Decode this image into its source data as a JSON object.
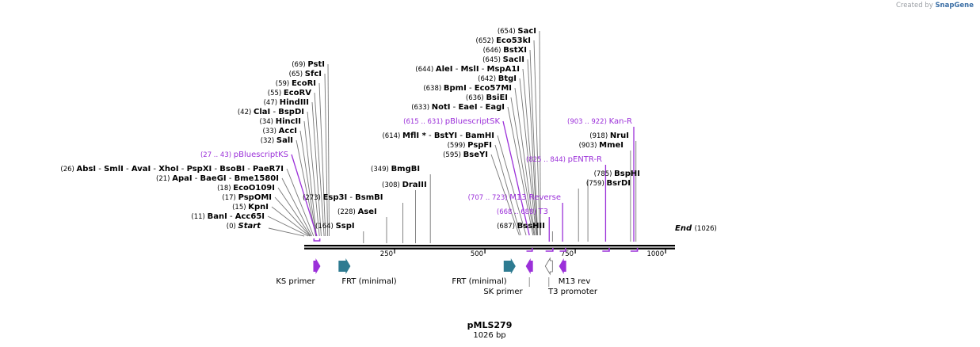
{
  "credit": {
    "prefix": "Created by",
    "brand": "SnapGene"
  },
  "map": {
    "name": "pMLS279",
    "length_label": "1026 bp",
    "total_bp": 1026,
    "ticks": [
      {
        "pos": 250,
        "label": "250"
      },
      {
        "pos": 500,
        "label": "500"
      },
      {
        "pos": 750,
        "label": "750"
      },
      {
        "pos": 1000,
        "label": "1000"
      }
    ],
    "colors": {
      "site_line": "#777777",
      "primer": "#9b30d9",
      "feature_text": "#000000",
      "frt": "#2e7b91"
    },
    "left_sites": [
      {
        "pos": "(69)",
        "names": [
          "PstI"
        ],
        "bp": 69
      },
      {
        "pos": "(65)",
        "names": [
          "SfcI"
        ],
        "bp": 65
      },
      {
        "pos": "(59)",
        "names": [
          "EcoRI"
        ],
        "bp": 59
      },
      {
        "pos": "(55)",
        "names": [
          "EcoRV"
        ],
        "bp": 55
      },
      {
        "pos": "(47)",
        "names": [
          "HindIII"
        ],
        "bp": 47
      },
      {
        "pos": "(42)",
        "names": [
          "ClaI",
          "BspDI"
        ],
        "bp": 42
      },
      {
        "pos": "(34)",
        "names": [
          "HincII"
        ],
        "bp": 34
      },
      {
        "pos": "(33)",
        "names": [
          "AccI"
        ],
        "bp": 33
      },
      {
        "pos": "(32)",
        "names": [
          "SalI"
        ],
        "bp": 32
      },
      {
        "pos": "(27 .. 43)",
        "names": [
          "pBluescriptKS"
        ],
        "bp": 35,
        "primer": true
      },
      {
        "pos": "(26)",
        "names": [
          "AbsI",
          "SmlI",
          "AvaI",
          "XhoI",
          "PspXI",
          "BsoBI",
          "PaeR7I"
        ],
        "bp": 26
      },
      {
        "pos": "(21)",
        "names": [
          "ApaI",
          "BaeGI",
          "Bme1580I"
        ],
        "bp": 21
      },
      {
        "pos": "(18)",
        "names": [
          "EcoO109I"
        ],
        "bp": 18
      },
      {
        "pos": "(17)",
        "names": [
          "PspOMI"
        ],
        "bp": 17
      },
      {
        "pos": "(15)",
        "names": [
          "KpnI"
        ],
        "bp": 15
      },
      {
        "pos": "(11)",
        "names": [
          "BanI",
          "Acc65I"
        ],
        "bp": 11
      },
      {
        "pos": "(0)",
        "names": [
          "Start"
        ],
        "bp": 0,
        "italic": true
      }
    ],
    "mid_sites": [
      {
        "pos": "(349)",
        "names": [
          "BmgBI"
        ],
        "bp": 349
      },
      {
        "pos": "(308)",
        "names": [
          "DraIII"
        ],
        "bp": 308
      },
      {
        "pos": "(273)",
        "names": [
          "Esp3I",
          "BsmBI"
        ],
        "bp": 273
      },
      {
        "pos": "(228)",
        "names": [
          "AseI"
        ],
        "bp": 228
      },
      {
        "pos": "(164)",
        "names": [
          "SspI"
        ],
        "bp": 164
      }
    ],
    "center_sites": [
      {
        "pos": "(654)",
        "names": [
          "SacI"
        ],
        "bp": 654
      },
      {
        "pos": "(652)",
        "names": [
          "Eco53kI"
        ],
        "bp": 652
      },
      {
        "pos": "(646)",
        "names": [
          "BstXI"
        ],
        "bp": 646
      },
      {
        "pos": "(645)",
        "names": [
          "SacII"
        ],
        "bp": 645
      },
      {
        "pos": "(644)",
        "names": [
          "AleI",
          "MslI",
          "MspA1I"
        ],
        "bp": 644
      },
      {
        "pos": "(642)",
        "names": [
          "BtgI"
        ],
        "bp": 642
      },
      {
        "pos": "(638)",
        "names": [
          "BpmI",
          "Eco57MI"
        ],
        "bp": 638
      },
      {
        "pos": "(636)",
        "names": [
          "BsiEI"
        ],
        "bp": 636
      },
      {
        "pos": "(633)",
        "names": [
          "NotI",
          "EaeI",
          "EagI"
        ],
        "bp": 633
      },
      {
        "pos": "(615 .. 631)",
        "names": [
          "pBluescriptSK"
        ],
        "bp": 623,
        "primer": true
      },
      {
        "pos": "(614)",
        "names": [
          "MflI *",
          "BstYI",
          "BamHI"
        ],
        "bp": 614
      },
      {
        "pos": "(599)",
        "names": [
          "PspFI"
        ],
        "bp": 599
      },
      {
        "pos": "(595)",
        "names": [
          "BseYI"
        ],
        "bp": 595
      }
    ],
    "right_sites": [
      {
        "pos": "(825 .. 844)",
        "names": [
          "pENTR-R"
        ],
        "bp": 834,
        "primer": true
      },
      {
        "pos": "(785)",
        "names": [
          "BspHI"
        ],
        "bp": 785
      },
      {
        "pos": "(759)",
        "names": [
          "BsrDI"
        ],
        "bp": 759
      },
      {
        "pos": "(707 .. 723)",
        "names": [
          "M13 Reverse"
        ],
        "bp": 715,
        "primer": true
      },
      {
        "pos": "(668 .. 688)",
        "names": [
          "T3"
        ],
        "bp": 678,
        "primer": true
      },
      {
        "pos": "(687)",
        "names": [
          "BssHII"
        ],
        "bp": 687
      }
    ],
    "far_right_sites": [
      {
        "pos": "(903 .. 922)",
        "names": [
          "Kan-R"
        ],
        "bp": 912,
        "primer": true
      },
      {
        "pos": "(918)",
        "names": [
          "NruI"
        ],
        "bp": 918
      },
      {
        "pos": "(903)",
        "names": [
          "MmeI"
        ],
        "bp": 903
      }
    ],
    "end_site": {
      "pos": "(1026)",
      "name": "End",
      "bp": 1026
    },
    "features": [
      {
        "name": "KS primer",
        "start": 27,
        "end": 43,
        "dir": "fwd",
        "kind": "primer"
      },
      {
        "name": "FRT (minimal)",
        "start": 95,
        "end": 128,
        "dir": "fwd",
        "kind": "frt"
      },
      {
        "name": "FRT (minimal)",
        "start": 552,
        "end": 585,
        "dir": "fwd",
        "kind": "frt"
      },
      {
        "name": "SK primer",
        "start": 615,
        "end": 631,
        "dir": "rev",
        "kind": "primer"
      },
      {
        "name": "T3 promoter",
        "start": 668,
        "end": 686,
        "dir": "rev",
        "kind": "promoter"
      },
      {
        "name": "M13 rev",
        "start": 707,
        "end": 723,
        "dir": "rev",
        "kind": "primer"
      }
    ],
    "primer_binding_marks": [
      {
        "start": 27,
        "end": 43,
        "strand": "top"
      },
      {
        "start": 615,
        "end": 631,
        "strand": "bottom"
      },
      {
        "start": 668,
        "end": 688,
        "strand": "bottom"
      },
      {
        "start": 707,
        "end": 723,
        "strand": "bottom"
      },
      {
        "start": 825,
        "end": 844,
        "strand": "bottom"
      },
      {
        "start": 903,
        "end": 922,
        "strand": "bottom"
      }
    ]
  }
}
